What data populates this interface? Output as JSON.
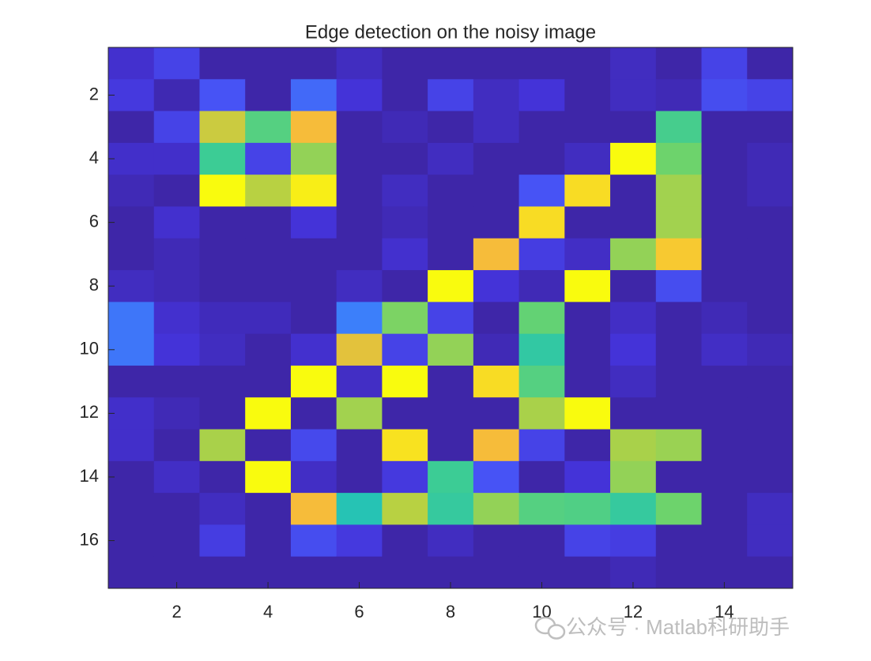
{
  "chart_data": {
    "type": "heatmap",
    "title": "Edge detection on the noisy image",
    "z": [
      [
        0.08,
        0.15,
        0,
        0,
        0,
        0.05,
        0,
        0,
        0,
        0,
        0,
        0.05,
        0,
        0.15,
        0
      ],
      [
        0.12,
        0.02,
        0.2,
        0,
        0.25,
        0.1,
        0,
        0.15,
        0.05,
        0.1,
        0,
        0.05,
        0.03,
        0.18,
        0.15
      ],
      [
        0,
        0.15,
        0.83,
        0.65,
        0.9,
        0,
        0.03,
        0,
        0.05,
        0,
        0,
        0,
        0.62,
        0,
        0
      ],
      [
        0.07,
        0.07,
        0.6,
        0.15,
        0.75,
        0,
        0,
        0.05,
        0,
        0,
        0.05,
        1,
        0.7,
        0,
        0.03
      ],
      [
        0.03,
        0,
        1,
        0.8,
        0.98,
        0,
        0.05,
        0,
        0,
        0.2,
        0.95,
        0,
        0.77,
        0,
        0.03
      ],
      [
        0,
        0.08,
        0,
        0,
        0.1,
        0,
        0.03,
        0,
        0,
        0.95,
        0,
        0,
        0.77,
        0,
        0
      ],
      [
        0,
        0.03,
        0,
        0,
        0,
        0,
        0.08,
        0,
        0.9,
        0.13,
        0.06,
        0.75,
        0.92,
        0,
        0
      ],
      [
        0.05,
        0.03,
        0,
        0,
        0,
        0.05,
        0,
        1,
        0.1,
        0.03,
        1,
        0,
        0.18,
        0,
        0
      ],
      [
        0.28,
        0.08,
        0.04,
        0.04,
        0,
        0.3,
        0.72,
        0.15,
        0,
        0.68,
        0,
        0.06,
        0,
        0.03,
        0
      ],
      [
        0.28,
        0.1,
        0.05,
        0,
        0.08,
        0.87,
        0.15,
        0.75,
        0.03,
        0.57,
        0,
        0.1,
        0,
        0.06,
        0.03
      ],
      [
        0,
        0,
        0,
        0,
        1,
        0.06,
        1,
        0,
        0.95,
        0.65,
        0,
        0.05,
        0,
        0,
        0
      ],
      [
        0.07,
        0.03,
        0,
        1,
        0,
        0.77,
        0,
        0,
        0,
        0.78,
        1,
        0,
        0,
        0,
        0
      ],
      [
        0.07,
        0,
        0.78,
        0,
        0.17,
        0,
        0.96,
        0,
        0.9,
        0.15,
        0,
        0.78,
        0.76,
        0,
        0
      ],
      [
        0,
        0.06,
        0,
        1,
        0.06,
        0,
        0.12,
        0.6,
        0.2,
        0,
        0.1,
        0.75,
        0,
        0,
        0
      ],
      [
        0,
        0,
        0.05,
        0,
        0.9,
        0.53,
        0.8,
        0.58,
        0.75,
        0.65,
        0.64,
        0.58,
        0.7,
        0,
        0.05
      ],
      [
        0,
        0,
        0.13,
        0,
        0.18,
        0.12,
        0,
        0.05,
        0,
        0,
        0.15,
        0.13,
        0,
        0,
        0.05
      ],
      [
        0,
        0,
        0,
        0,
        0,
        0,
        0,
        0,
        0,
        0,
        0,
        0.03,
        0,
        0,
        0
      ]
    ],
    "clim": [
      0,
      1
    ],
    "colormap": [
      "#3e26a8",
      "#4433d8",
      "#4753f5",
      "#3c7ffa",
      "#1fa2dd",
      "#1cbfc2",
      "#3ccc95",
      "#6dd36c",
      "#b8d142",
      "#f6bc3a",
      "#f9fb0e"
    ],
    "xlim": [
      0.5,
      15.5
    ],
    "ylim": [
      0.5,
      17.5
    ],
    "y_reversed": true,
    "xticks": [
      2,
      4,
      6,
      8,
      10,
      12,
      14
    ],
    "yticks": [
      2,
      4,
      6,
      8,
      10,
      12,
      14,
      16
    ]
  },
  "watermark": "公众号 · Matlab科研助手"
}
